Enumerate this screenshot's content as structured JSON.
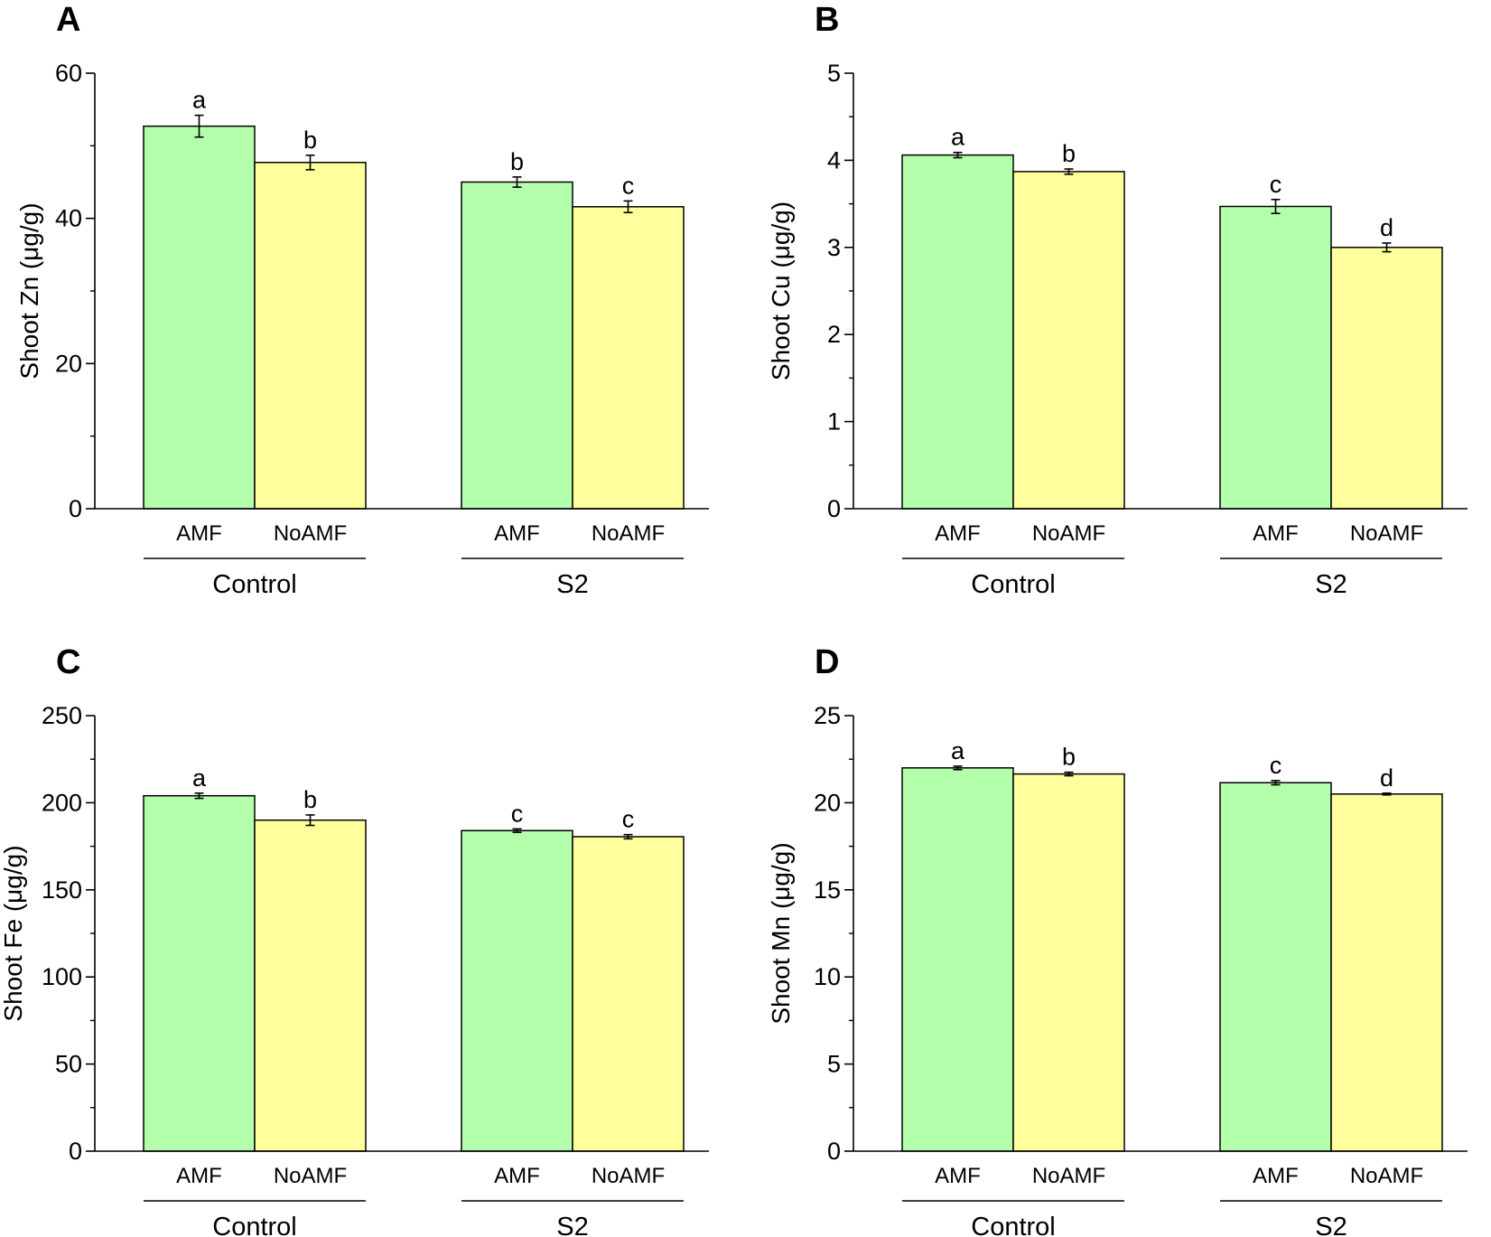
{
  "chart_data": [
    {
      "type": "bar",
      "panel": "A",
      "ylabel": "Shoot Zn (μg/g)",
      "ylim": [
        0,
        60
      ],
      "yticks": [
        0,
        20,
        40,
        60
      ],
      "groups": [
        "Control",
        "S2"
      ],
      "categories": [
        "AMF",
        "NoAMF",
        "AMF",
        "NoAMF"
      ],
      "values": [
        52.7,
        47.7,
        45.0,
        41.6
      ],
      "errors": [
        1.5,
        1.0,
        0.7,
        0.8
      ],
      "significance": [
        "a",
        "b",
        "b",
        "c"
      ],
      "colors": [
        "#b3ffab",
        "#ffff9e",
        "#b3ffab",
        "#ffff9e"
      ]
    },
    {
      "type": "bar",
      "panel": "B",
      "ylabel": "Shoot Cu (μg/g)",
      "ylim": [
        0,
        5
      ],
      "yticks": [
        0,
        1,
        2,
        3,
        4,
        5
      ],
      "groups": [
        "Control",
        "S2"
      ],
      "categories": [
        "AMF",
        "NoAMF",
        "AMF",
        "NoAMF"
      ],
      "values": [
        4.06,
        3.87,
        3.47,
        3.0
      ],
      "errors": [
        0.03,
        0.03,
        0.08,
        0.05
      ],
      "significance": [
        "a",
        "b",
        "c",
        "d"
      ],
      "colors": [
        "#b3ffab",
        "#ffff9e",
        "#b3ffab",
        "#ffff9e"
      ]
    },
    {
      "type": "bar",
      "panel": "C",
      "ylabel": "Shoot Fe (μg/g)",
      "ylim": [
        0,
        250
      ],
      "yticks": [
        0,
        50,
        100,
        150,
        200,
        250
      ],
      "groups": [
        "Control",
        "S2"
      ],
      "categories": [
        "AMF",
        "NoAMF",
        "AMF",
        "NoAMF"
      ],
      "values": [
        204,
        190,
        184,
        180.5
      ],
      "errors": [
        1.5,
        3.0,
        1.0,
        1.2
      ],
      "significance": [
        "a",
        "b",
        "c",
        "c"
      ],
      "colors": [
        "#b3ffab",
        "#ffff9e",
        "#b3ffab",
        "#ffff9e"
      ]
    },
    {
      "type": "bar",
      "panel": "D",
      "ylabel": "Shoot Mn (μg/g)",
      "ylim": [
        0,
        25
      ],
      "yticks": [
        0,
        5,
        10,
        15,
        20,
        25
      ],
      "groups": [
        "Control",
        "S2"
      ],
      "categories": [
        "AMF",
        "NoAMF",
        "AMF",
        "NoAMF"
      ],
      "values": [
        22.0,
        21.65,
        21.15,
        20.5
      ],
      "errors": [
        0.1,
        0.1,
        0.12,
        0.05
      ],
      "significance": [
        "a",
        "b",
        "c",
        "d"
      ],
      "colors": [
        "#b3ffab",
        "#ffff9e",
        "#b3ffab",
        "#ffff9e"
      ]
    }
  ]
}
